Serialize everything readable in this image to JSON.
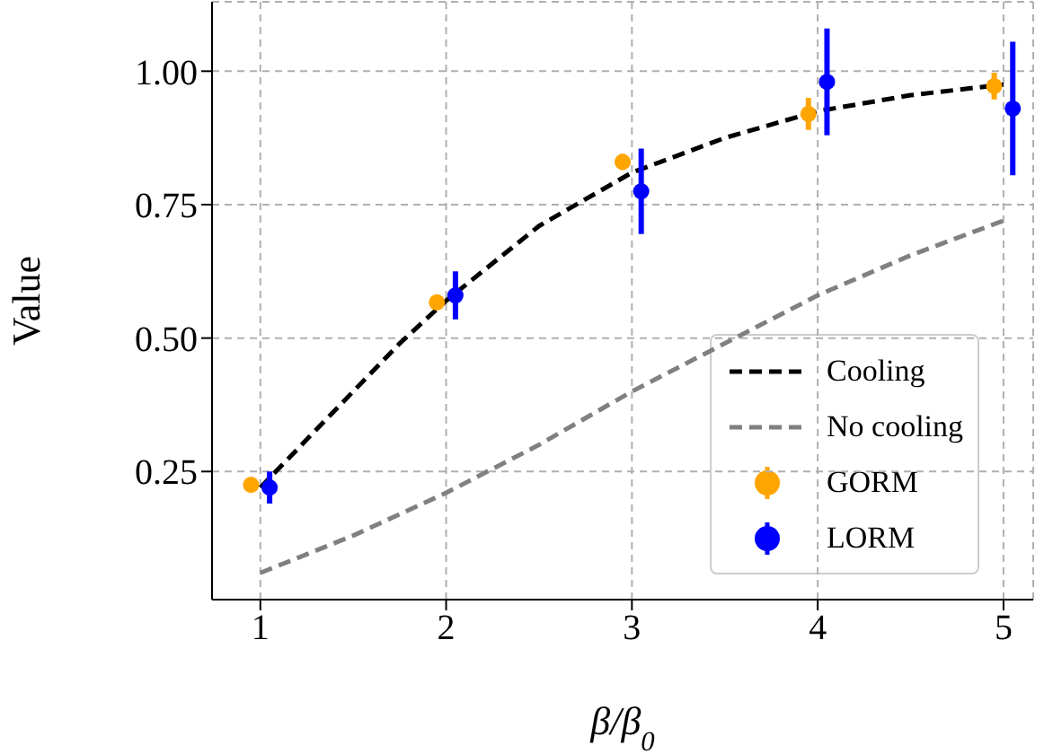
{
  "chart_data": {
    "type": "line",
    "xlabel": "β/β$_{0}$",
    "ylabel": "Value",
    "xlim": [
      0.74,
      5.16
    ],
    "ylim": [
      0.01,
      1.13
    ],
    "xticks": [
      1,
      2,
      3,
      4,
      5
    ],
    "yticks": [
      0.25,
      {
        "value": 0.5,
        "label": "0.50"
      },
      0.75,
      {
        "value": 1,
        "label": "1.00"
      }
    ],
    "grid": true,
    "legend": "bottom right",
    "series": [
      {
        "name": "Cooling",
        "color": "#000000",
        "line_style": "dashed",
        "marker": "none",
        "x": [
          1,
          1.25,
          1.5,
          1.75,
          2,
          2.5,
          3,
          3.5,
          4,
          4.5,
          5
        ],
        "values": [
          0.22,
          0.31,
          0.4,
          0.49,
          0.57,
          0.71,
          0.81,
          0.875,
          0.925,
          0.955,
          0.975
        ]
      },
      {
        "name": "No cooling",
        "color": "#808080",
        "line_style": "dashed",
        "marker": "none",
        "x": [
          1,
          1.5,
          2,
          2.5,
          3,
          3.5,
          4,
          4.5,
          5
        ],
        "values": [
          0.06,
          0.13,
          0.21,
          0.3,
          0.4,
          0.49,
          0.58,
          0.655,
          0.72
        ]
      },
      {
        "name": "GORM",
        "type": "scatter",
        "color": "#ffa500",
        "marker": "circle",
        "x": [
          0.95,
          1.95,
          2.95,
          3.95,
          4.95
        ],
        "values": [
          0.225,
          0.567,
          0.83,
          0.92,
          0.972
        ],
        "errors": [
          0.01,
          0.01,
          0.015,
          0.03,
          0.025
        ]
      },
      {
        "name": "LORM",
        "type": "scatter",
        "color": "#0000ff",
        "marker": "circle",
        "x": [
          1.05,
          2.05,
          3.05,
          4.05,
          5.05
        ],
        "values": [
          0.22,
          0.58,
          0.775,
          0.98,
          0.93
        ],
        "errors": [
          0.03,
          0.045,
          0.08,
          0.1,
          0.125
        ]
      }
    ]
  }
}
